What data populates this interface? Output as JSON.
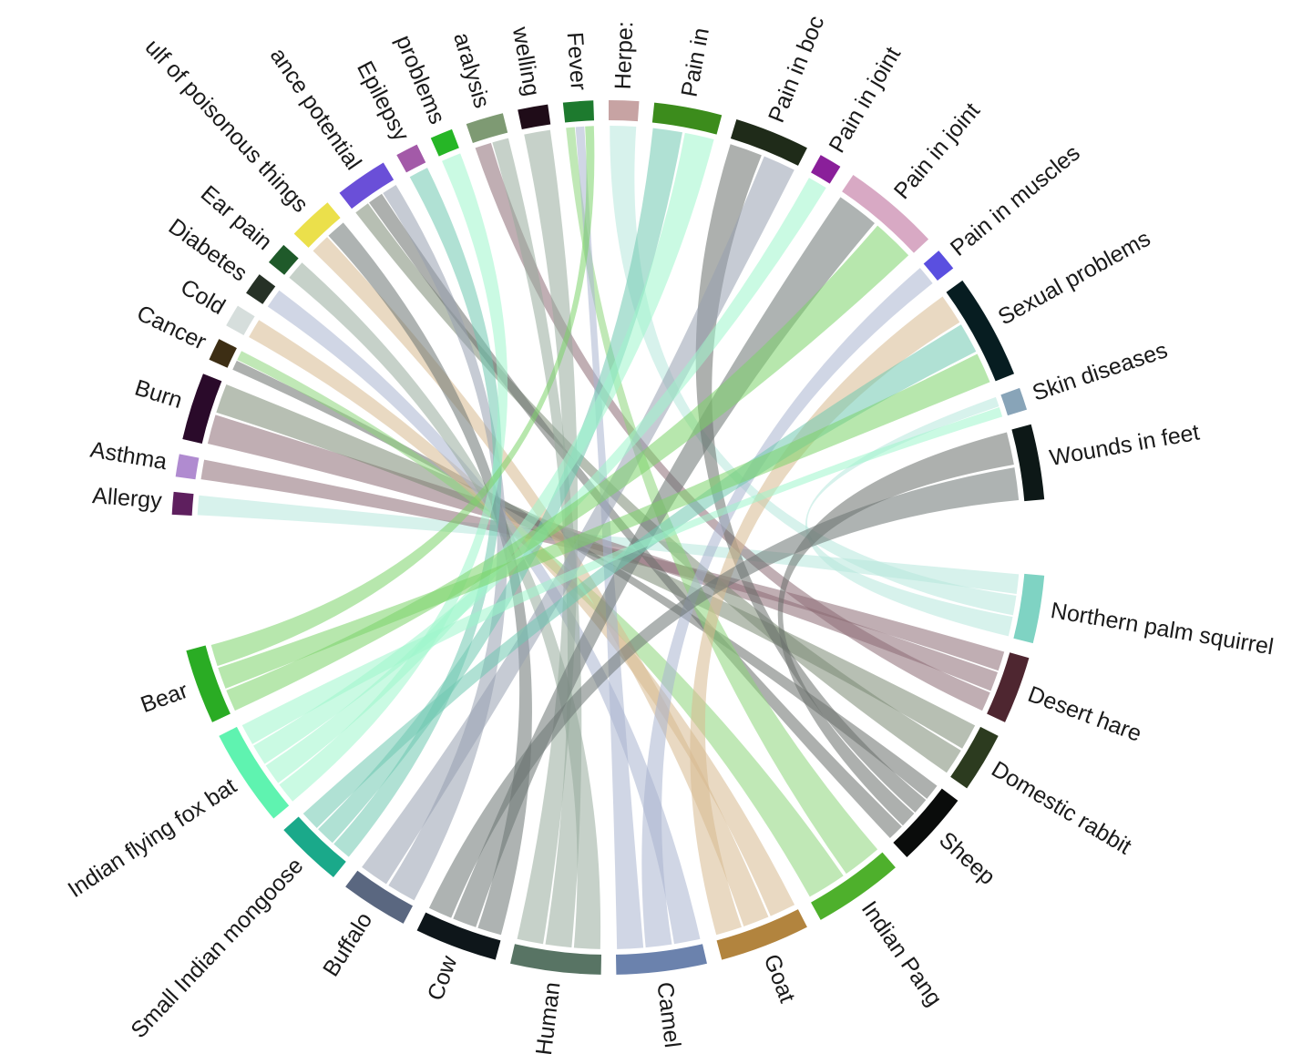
{
  "diagram": {
    "type": "chord",
    "diseases": [
      {
        "id": "allergy",
        "label": "Allergy",
        "color": "#5e1f5e"
      },
      {
        "id": "asthma",
        "label": "Asthma",
        "color": "#b08bd0"
      },
      {
        "id": "burn",
        "label": "Burn",
        "color": "#2a0a2a"
      },
      {
        "id": "cancer",
        "label": "Cancer",
        "color": "#3d2e14"
      },
      {
        "id": "cold",
        "label": "Cold",
        "color": "#d6dedc"
      },
      {
        "id": "diabetes",
        "label": "Diabetes",
        "color": "#263126"
      },
      {
        "id": "earpain",
        "label": "Ear pain",
        "color": "#1f5a2a"
      },
      {
        "id": "poison",
        "label": "ulf of poisonous things",
        "color": "#ebe04b"
      },
      {
        "id": "endurance",
        "label": "ance potential",
        "color": "#6a4fd8"
      },
      {
        "id": "epilepsy",
        "label": "Epilepsy",
        "color": "#a35aa8"
      },
      {
        "id": "problems",
        "label": "problems",
        "color": "#26b626"
      },
      {
        "id": "paralysis",
        "label": "aralysis",
        "color": "#7e9a73"
      },
      {
        "id": "swelling",
        "label": "welling",
        "color": "#1f0c18"
      },
      {
        "id": "fever",
        "label": "Fever",
        "color": "#1d7a2e"
      },
      {
        "id": "herpes",
        "label": "Herpe:",
        "color": "#c7a3a3"
      },
      {
        "id": "pain1",
        "label": "Pain in",
        "color": "#3c8c1c"
      },
      {
        "id": "painbody",
        "label": "Pain in boc",
        "color": "#1f2b19"
      },
      {
        "id": "painjoint1",
        "label": "Pain in joint",
        "color": "#8a1f9a"
      },
      {
        "id": "painjoint2",
        "label": "Pain in joint",
        "color": "#d8a9c4"
      },
      {
        "id": "painmuscles",
        "label": "Pain in muscles",
        "color": "#5a4fe0"
      },
      {
        "id": "sexual",
        "label": "Sexual problems",
        "color": "#071d21"
      },
      {
        "id": "skin",
        "label": "Skin diseases",
        "color": "#88a4b8"
      },
      {
        "id": "wounds",
        "label": "Wounds in feet",
        "color": "#0d1817"
      }
    ],
    "animals": [
      {
        "id": "squirrel",
        "label": "Northern palm squirrel",
        "color": "#7fd3c3"
      },
      {
        "id": "hare",
        "label": "Desert hare",
        "color": "#4e2630"
      },
      {
        "id": "rabbit",
        "label": "Domestic rabbit",
        "color": "#2c3b1f"
      },
      {
        "id": "sheep",
        "label": "Sheep",
        "color": "#0a0c0b"
      },
      {
        "id": "panda",
        "label": "Indian Pang",
        "color": "#4eb02c"
      },
      {
        "id": "goat",
        "label": "Goat",
        "color": "#b2843e"
      },
      {
        "id": "camel",
        "label": "Camel",
        "color": "#6b82ad"
      },
      {
        "id": "human",
        "label": "Human",
        "color": "#587464"
      },
      {
        "id": "cow",
        "label": "Cow",
        "color": "#0e161a"
      },
      {
        "id": "buffalo",
        "label": "Buffalo",
        "color": "#5a6780"
      },
      {
        "id": "mongoose",
        "label": "Small Indian mongoose",
        "color": "#1aa98a"
      },
      {
        "id": "bat",
        "label": "Indian flying fox bat",
        "color": "#5ff3b0"
      },
      {
        "id": "bear",
        "label": "Bear",
        "color": "#2aac24"
      }
    ],
    "links": [
      [
        "squirrel",
        "allergy",
        "#b7e8dc"
      ],
      [
        "squirrel",
        "herpes",
        "#b7e8dc"
      ],
      [
        "squirrel",
        "skin",
        "#b7e8dc"
      ],
      [
        "hare",
        "asthma",
        "#8c6c74"
      ],
      [
        "hare",
        "burn",
        "#8c6c74"
      ],
      [
        "hare",
        "paralysis",
        "#8c6c74"
      ],
      [
        "rabbit",
        "burn",
        "#7b8a74"
      ],
      [
        "rabbit",
        "endurance",
        "#7b8a74"
      ],
      [
        "sheep",
        "cancer",
        "#6a706c"
      ],
      [
        "sheep",
        "painbody",
        "#6a706c"
      ],
      [
        "sheep",
        "wounds",
        "#6a706c"
      ],
      [
        "sheep",
        "endurance",
        "#6a706c"
      ],
      [
        "panda",
        "fever",
        "#8dd57a"
      ],
      [
        "panda",
        "cancer",
        "#8dd57a"
      ],
      [
        "goat",
        "cold",
        "#d7b98f"
      ],
      [
        "goat",
        "poison",
        "#d7b98f"
      ],
      [
        "goat",
        "sexual",
        "#d7b98f"
      ],
      [
        "camel",
        "diabetes",
        "#a9b4cf"
      ],
      [
        "camel",
        "painmuscles",
        "#a9b4cf"
      ],
      [
        "camel",
        "fever",
        "#a9b4cf"
      ],
      [
        "human",
        "earpain",
        "#97ab9c"
      ],
      [
        "human",
        "paralysis",
        "#97ab9c"
      ],
      [
        "human",
        "swelling",
        "#97ab9c"
      ],
      [
        "cow",
        "poison",
        "#6c7472"
      ],
      [
        "cow",
        "painjoint2",
        "#6c7472"
      ],
      [
        "cow",
        "wounds",
        "#6c7472"
      ],
      [
        "buffalo",
        "endurance",
        "#98a1b0"
      ],
      [
        "buffalo",
        "painbody",
        "#98a1b0"
      ],
      [
        "mongoose",
        "epilepsy",
        "#6fc9b0"
      ],
      [
        "mongoose",
        "pain1",
        "#6fc9b0"
      ],
      [
        "mongoose",
        "sexual",
        "#6fc9b0"
      ],
      [
        "bat",
        "problems",
        "#9ff5cc"
      ],
      [
        "bat",
        "pain1",
        "#9ff5cc"
      ],
      [
        "bat",
        "painjoint1",
        "#9ff5cc"
      ],
      [
        "bat",
        "skin",
        "#9ff5cc"
      ],
      [
        "bear",
        "painjoint2",
        "#7cd46a"
      ],
      [
        "bear",
        "sexual",
        "#7cd46a"
      ],
      [
        "bear",
        "fever",
        "#7cd46a"
      ]
    ]
  }
}
